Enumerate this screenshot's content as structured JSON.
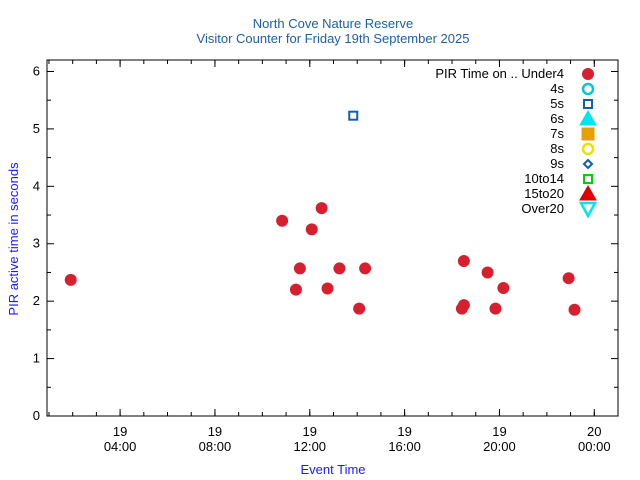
{
  "chart_data": {
    "type": "scatter",
    "title": "North Cove Nature Reserve",
    "subtitle": "Visitor Counter for Friday 19th September 2025",
    "xlabel": "Event Time",
    "ylabel": "PIR active time in seconds",
    "xlim": [
      "2025-09-19 00:55",
      "2025-09-20 01:00"
    ],
    "ylim": [
      0,
      6.2
    ],
    "yticks": [
      0,
      1,
      2,
      3,
      4,
      5,
      6
    ],
    "xticks": [
      {
        "t": "2025-09-19 04:00",
        "day": "19",
        "time": "04:00"
      },
      {
        "t": "2025-09-19 08:00",
        "day": "19",
        "time": "08:00"
      },
      {
        "t": "2025-09-19 12:00",
        "day": "19",
        "time": "12:00"
      },
      {
        "t": "2025-09-19 16:00",
        "day": "19",
        "time": "16:00"
      },
      {
        "t": "2025-09-19 20:00",
        "day": "19",
        "time": "20:00"
      },
      {
        "t": "2025-09-20 00:00",
        "day": "20",
        "time": "00:00"
      }
    ],
    "legend_position": "top-right",
    "legend_title_prefix": "PIR Time on ..",
    "series": [
      {
        "name": "Under4",
        "color": "#d62030",
        "marker": "circle-filled",
        "points": [
          {
            "x": "2025-09-19 01:55",
            "y": 2.37
          },
          {
            "x": "2025-09-19 10:50",
            "y": 3.4
          },
          {
            "x": "2025-09-19 11:25",
            "y": 2.2
          },
          {
            "x": "2025-09-19 11:35",
            "y": 2.57
          },
          {
            "x": "2025-09-19 12:05",
            "y": 3.25
          },
          {
            "x": "2025-09-19 12:30",
            "y": 3.62
          },
          {
            "x": "2025-09-19 12:45",
            "y": 2.22
          },
          {
            "x": "2025-09-19 13:15",
            "y": 2.57
          },
          {
            "x": "2025-09-19 14:05",
            "y": 1.87
          },
          {
            "x": "2025-09-19 14:20",
            "y": 2.57
          },
          {
            "x": "2025-09-19 18:25",
            "y": 1.87
          },
          {
            "x": "2025-09-19 18:30",
            "y": 1.93
          },
          {
            "x": "2025-09-19 18:30",
            "y": 2.7
          },
          {
            "x": "2025-09-19 19:30",
            "y": 2.5
          },
          {
            "x": "2025-09-19 19:50",
            "y": 1.87
          },
          {
            "x": "2025-09-19 20:10",
            "y": 2.23
          },
          {
            "x": "2025-09-19 22:55",
            "y": 2.4
          },
          {
            "x": "2025-09-19 23:10",
            "y": 1.85
          }
        ]
      },
      {
        "name": "4s",
        "color": "#00c8d8",
        "marker": "circle-open",
        "points": []
      },
      {
        "name": "5s",
        "color": "#1060b0",
        "marker": "square-open",
        "points": [
          {
            "x": "2025-09-19 13:50",
            "y": 5.23
          }
        ]
      },
      {
        "name": "6s",
        "color": "#00e5ee",
        "marker": "triangle-filled",
        "points": []
      },
      {
        "name": "7s",
        "color": "#e8a000",
        "marker": "square-filled",
        "points": []
      },
      {
        "name": "8s",
        "color": "#f0e000",
        "marker": "circle-open",
        "points": []
      },
      {
        "name": "9s",
        "color": "#1060b0",
        "marker": "diamond-open",
        "points": []
      },
      {
        "name": "10to14",
        "color": "#00d000",
        "marker": "square-open",
        "points": []
      },
      {
        "name": "15to20",
        "color": "#e00000",
        "marker": "triangle-filled",
        "points": []
      },
      {
        "name": "Over20",
        "color": "#00e5ee",
        "marker": "triangle-down-open",
        "points": []
      }
    ]
  }
}
